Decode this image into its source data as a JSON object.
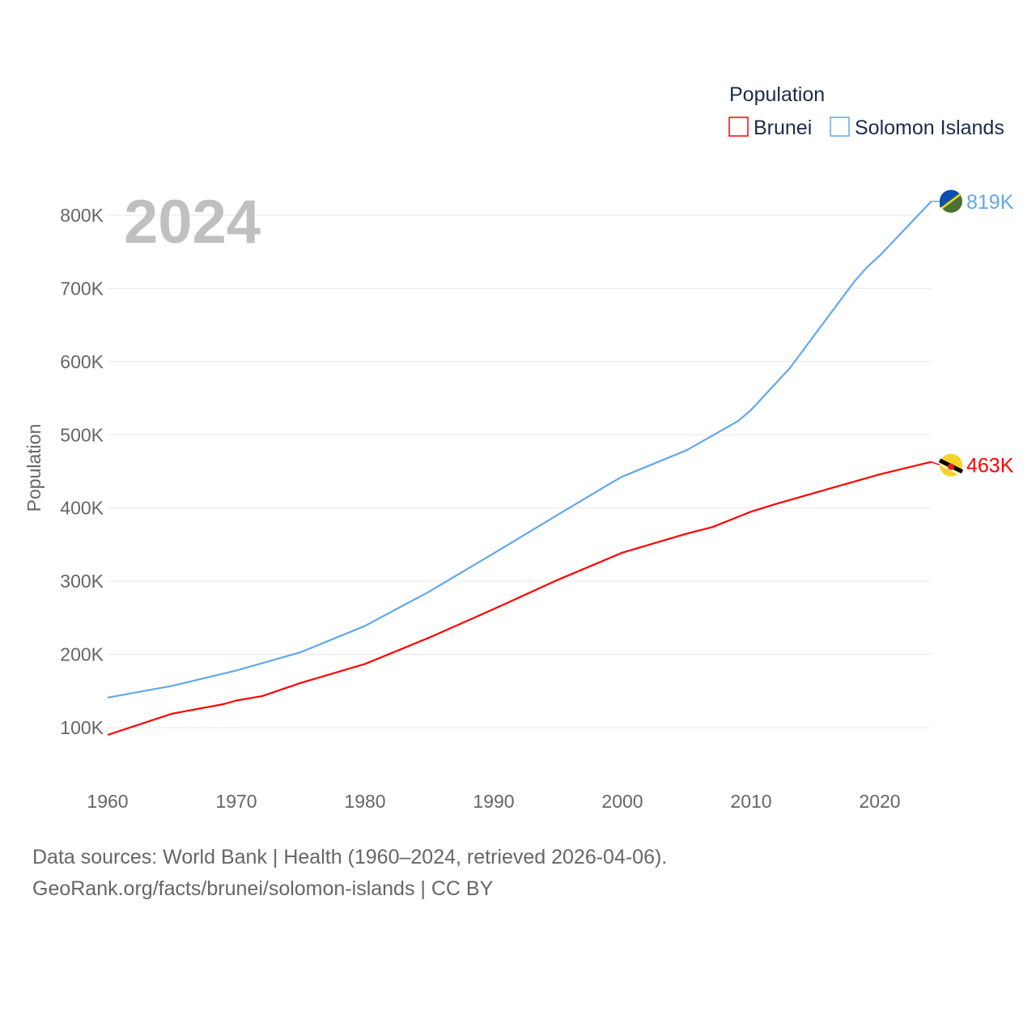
{
  "chart_data": {
    "type": "line",
    "title": "",
    "year_label": "2024",
    "xlabel": "",
    "ylabel": "Population",
    "xlim": [
      1960,
      2024
    ],
    "ylim": [
      0,
      850000
    ],
    "x_ticks": [
      1960,
      1970,
      1980,
      1990,
      2000,
      2010,
      2020
    ],
    "y_ticks": [
      100000,
      200000,
      300000,
      400000,
      500000,
      600000,
      700000,
      800000
    ],
    "y_tick_labels": [
      "100K",
      "200K",
      "300K",
      "400K",
      "500K",
      "600K",
      "700K",
      "800K"
    ],
    "legend": {
      "title": "Population",
      "placement": "top-right"
    },
    "series": [
      {
        "name": "Brunei",
        "color": "#ff0000",
        "end_label": "463K",
        "x": [
          1960,
          1965,
          1969,
          1970,
          1972,
          1975,
          1980,
          1985,
          1990,
          1995,
          2000,
          2005,
          2007,
          2010,
          2012,
          2015,
          2020,
          2024
        ],
        "values": [
          90000,
          119000,
          132000,
          137000,
          143000,
          161000,
          187000,
          223000,
          262000,
          302000,
          339000,
          365000,
          374000,
          395000,
          406000,
          421000,
          446000,
          463000
        ]
      },
      {
        "name": "Solomon Islands",
        "color": "#62a8ea",
        "end_label": "819K",
        "x": [
          1960,
          1965,
          1970,
          1975,
          1980,
          1985,
          1990,
          1995,
          1999,
          2000,
          2005,
          2009,
          2010,
          2013,
          2018,
          2019,
          2020,
          2024
        ],
        "values": [
          141000,
          157000,
          178000,
          203000,
          239000,
          286000,
          338000,
          391000,
          433000,
          443000,
          479000,
          519000,
          534000,
          591000,
          709000,
          729000,
          745000,
          819000
        ]
      }
    ]
  },
  "footer": {
    "line1": "Data sources: World Bank | Health (1960–2024, retrieved 2026-04-06).",
    "line2": "GeoRank.org/facts/brunei/solomon-islands | CC BY"
  }
}
